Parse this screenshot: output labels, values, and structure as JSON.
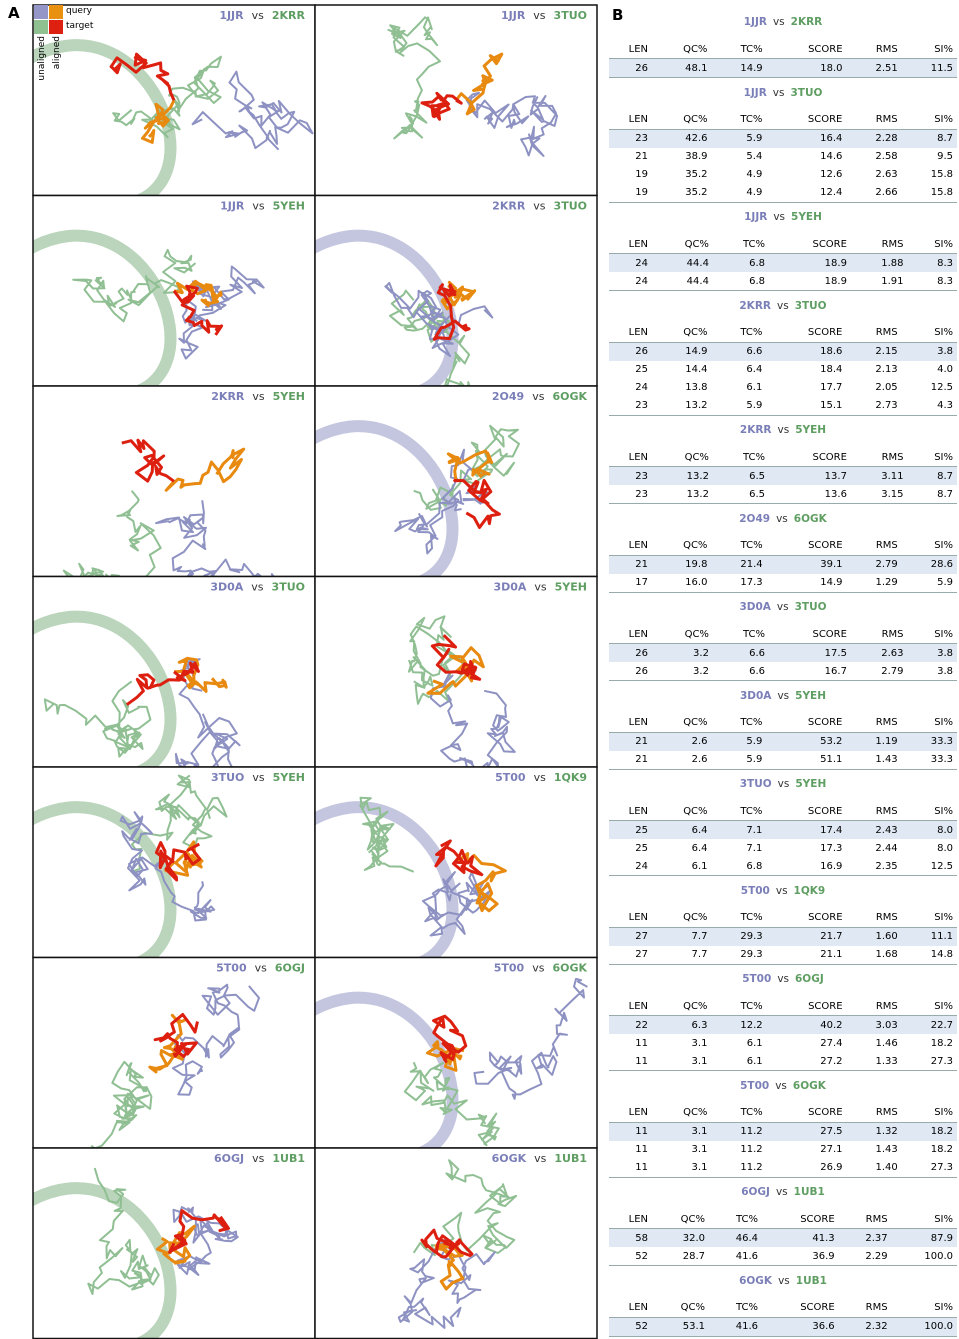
{
  "panel_a": {
    "label": "A",
    "legend": {
      "query": "query",
      "target": "target",
      "unaligned": "unaligned",
      "aligned": "aligned"
    }
  },
  "panel_b": {
    "label": "B",
    "columns": [
      "LEN",
      "QC%",
      "TC%",
      "SCORE",
      "RMS",
      "SI%"
    ]
  },
  "comparisons": [
    {
      "query": "1JJR",
      "vs": "vs",
      "target": "2KRR",
      "rows": [
        [
          "26",
          "48.1",
          "14.9",
          "18.0",
          "2.51",
          "11.5"
        ]
      ]
    },
    {
      "query": "1JJR",
      "vs": "vs",
      "target": "3TUO",
      "rows": [
        [
          "23",
          "42.6",
          "5.9",
          "16.4",
          "2.28",
          "8.7"
        ],
        [
          "21",
          "38.9",
          "5.4",
          "14.6",
          "2.58",
          "9.5"
        ],
        [
          "19",
          "35.2",
          "4.9",
          "12.6",
          "2.63",
          "15.8"
        ],
        [
          "19",
          "35.2",
          "4.9",
          "12.4",
          "2.66",
          "15.8"
        ]
      ]
    },
    {
      "query": "1JJR",
      "vs": "vs",
      "target": "5YEH",
      "rows": [
        [
          "24",
          "44.4",
          "6.8",
          "18.9",
          "1.88",
          "8.3"
        ],
        [
          "24",
          "44.4",
          "6.8",
          "18.9",
          "1.91",
          "8.3"
        ]
      ]
    },
    {
      "query": "2KRR",
      "vs": "vs",
      "target": "3TUO",
      "rows": [
        [
          "26",
          "14.9",
          "6.6",
          "18.6",
          "2.15",
          "3.8"
        ],
        [
          "25",
          "14.4",
          "6.4",
          "18.4",
          "2.13",
          "4.0"
        ],
        [
          "24",
          "13.8",
          "6.1",
          "17.7",
          "2.05",
          "12.5"
        ],
        [
          "23",
          "13.2",
          "5.9",
          "15.1",
          "2.73",
          "4.3"
        ]
      ]
    },
    {
      "query": "2KRR",
      "vs": "vs",
      "target": "5YEH",
      "rows": [
        [
          "23",
          "13.2",
          "6.5",
          "13.7",
          "3.11",
          "8.7"
        ],
        [
          "23",
          "13.2",
          "6.5",
          "13.6",
          "3.15",
          "8.7"
        ]
      ]
    },
    {
      "query": "2O49",
      "vs": "vs",
      "target": "6OGK",
      "rows": [
        [
          "21",
          "19.8",
          "21.4",
          "39.1",
          "2.79",
          "28.6"
        ],
        [
          "17",
          "16.0",
          "17.3",
          "14.9",
          "1.29",
          "5.9"
        ]
      ]
    },
    {
      "query": "3D0A",
      "vs": "vs",
      "target": "3TUO",
      "rows": [
        [
          "26",
          "3.2",
          "6.6",
          "17.5",
          "2.63",
          "3.8"
        ],
        [
          "26",
          "3.2",
          "6.6",
          "16.7",
          "2.79",
          "3.8"
        ]
      ]
    },
    {
      "query": "3D0A",
      "vs": "vs",
      "target": "5YEH",
      "rows": [
        [
          "21",
          "2.6",
          "5.9",
          "53.2",
          "1.19",
          "33.3"
        ],
        [
          "21",
          "2.6",
          "5.9",
          "51.1",
          "1.43",
          "33.3"
        ]
      ]
    },
    {
      "query": "3TUO",
      "vs": "vs",
      "target": "5YEH",
      "rows": [
        [
          "25",
          "6.4",
          "7.1",
          "17.4",
          "2.43",
          "8.0"
        ],
        [
          "25",
          "6.4",
          "7.1",
          "17.3",
          "2.44",
          "8.0"
        ],
        [
          "24",
          "6.1",
          "6.8",
          "16.9",
          "2.35",
          "12.5"
        ]
      ]
    },
    {
      "query": "5T00",
      "vs": "vs",
      "target": "1QK9",
      "rows": [
        [
          "27",
          "7.7",
          "29.3",
          "21.7",
          "1.60",
          "11.1"
        ],
        [
          "27",
          "7.7",
          "29.3",
          "21.1",
          "1.68",
          "14.8"
        ]
      ]
    },
    {
      "query": "5T00",
      "vs": "vs",
      "target": "6OGJ",
      "rows": [
        [
          "22",
          "6.3",
          "12.2",
          "40.2",
          "3.03",
          "22.7"
        ],
        [
          "11",
          "3.1",
          "6.1",
          "27.4",
          "1.46",
          "18.2"
        ],
        [
          "11",
          "3.1",
          "6.1",
          "27.2",
          "1.33",
          "27.3"
        ]
      ]
    },
    {
      "query": "5T00",
      "vs": "vs",
      "target": "6OGK",
      "rows": [
        [
          "11",
          "3.1",
          "11.2",
          "27.5",
          "1.32",
          "18.2"
        ],
        [
          "11",
          "3.1",
          "11.2",
          "27.1",
          "1.43",
          "18.2"
        ],
        [
          "11",
          "3.1",
          "11.2",
          "26.9",
          "1.40",
          "27.3"
        ]
      ]
    },
    {
      "query": "6OGJ",
      "vs": "vs",
      "target": "1UB1",
      "rows": [
        [
          "58",
          "32.0",
          "46.4",
          "41.3",
          "2.37",
          "87.9"
        ],
        [
          "52",
          "28.7",
          "41.6",
          "36.9",
          "2.29",
          "100.0"
        ]
      ]
    },
    {
      "query": "6OGK",
      "vs": "vs",
      "target": "1UB1",
      "rows": [
        [
          "52",
          "53.1",
          "41.6",
          "36.6",
          "2.32",
          "100.0"
        ]
      ]
    }
  ]
}
